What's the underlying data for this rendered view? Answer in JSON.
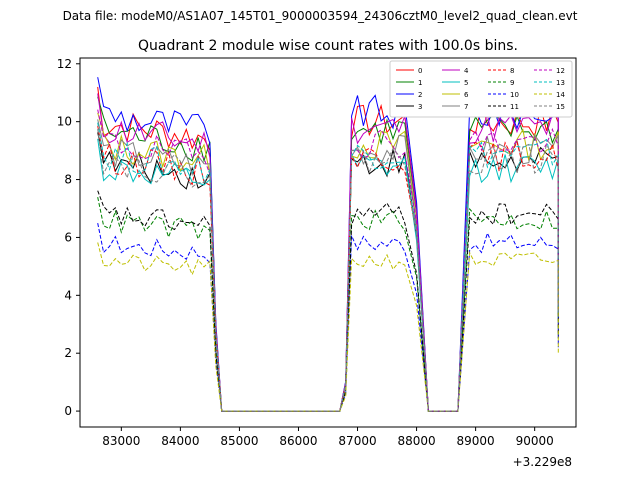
{
  "header": {
    "data_file": "Data file: modeM0/AS1A07_145T01_9000003594_24306cztM0_level2_quad_clean.evt"
  },
  "chart_data": {
    "type": "line",
    "title": "Quadrant 2 module wise count rates with 100.0s bins.",
    "xlabel": "",
    "ylabel": "",
    "x_offset_label": "+3.229e8",
    "xlim": [
      82300,
      90700
    ],
    "ylim": [
      -0.55,
      12.2
    ],
    "x_ticks": [
      83000,
      84000,
      85000,
      86000,
      87000,
      88000,
      89000,
      90000
    ],
    "x_tick_labels": [
      "83000",
      "84000",
      "85000",
      "86000",
      "87000",
      "88000",
      "89000",
      "90000"
    ],
    "y_ticks": [
      0,
      2,
      4,
      6,
      8,
      10,
      12
    ],
    "y_tick_labels": [
      "0",
      "2",
      "4",
      "6",
      "8",
      "10",
      "12"
    ],
    "grid": false,
    "legend": {
      "placement": "top-right",
      "columns": 4
    },
    "segments": [
      {
        "start": 82600,
        "end": 84500,
        "fall": [
          84600,
          84700
        ]
      },
      {
        "start": 86800,
        "end": 87800,
        "rise": [
          86700,
          86800
        ],
        "fall": [
          87900,
          88000,
          88200
        ]
      },
      {
        "start": 88900,
        "end": 90400,
        "rise": [
          88700,
          88900
        ],
        "fall": [
          90400
        ]
      }
    ],
    "series": [
      {
        "name": "0",
        "color": "#ff0000",
        "dash": "solid",
        "level": 10.0
      },
      {
        "name": "1",
        "color": "#008000",
        "dash": "solid",
        "level": 9.7
      },
      {
        "name": "2",
        "color": "#0000ff",
        "dash": "solid",
        "level": 10.3
      },
      {
        "name": "3",
        "color": "#000000",
        "dash": "solid",
        "level": 8.6
      },
      {
        "name": "4",
        "color": "#bf00bf",
        "dash": "solid",
        "level": 9.8
      },
      {
        "name": "5",
        "color": "#00bfbf",
        "dash": "solid",
        "level": 8.4
      },
      {
        "name": "6",
        "color": "#bfbf00",
        "dash": "solid",
        "level": 9.2
      },
      {
        "name": "7",
        "color": "#808080",
        "dash": "solid",
        "level": 9.0
      },
      {
        "name": "8",
        "color": "#ff0000",
        "dash": "dashed",
        "level": 8.8
      },
      {
        "name": "9",
        "color": "#008000",
        "dash": "dashed",
        "level": 6.6
      },
      {
        "name": "10",
        "color": "#0000ff",
        "dash": "dashed",
        "level": 5.8
      },
      {
        "name": "11",
        "color": "#000000",
        "dash": "dashed",
        "level": 6.8
      },
      {
        "name": "12",
        "color": "#bf00bf",
        "dash": "dashed",
        "level": 9.3
      },
      {
        "name": "13",
        "color": "#00bfbf",
        "dash": "dashed",
        "level": 8.9
      },
      {
        "name": "14",
        "color": "#bfbf00",
        "dash": "dashed",
        "level": 5.2
      },
      {
        "name": "15",
        "color": "#808080",
        "dash": "dashed",
        "level": 8.7
      }
    ]
  }
}
